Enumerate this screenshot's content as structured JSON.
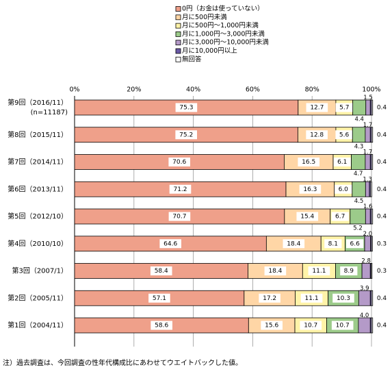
{
  "chart_data": {
    "type": "bar",
    "stacked": true,
    "orientation": "horizontal",
    "percent": true,
    "xlim": [
      0,
      100
    ],
    "x_ticks": [
      "0%",
      "20%",
      "40%",
      "60%",
      "80%",
      "100%"
    ],
    "legend_position": "top",
    "categories": [
      "第9回（2016/11）(n=11187)",
      "第8回（2015/11）",
      "第7回（2014/11）",
      "第6回（2013/11）",
      "第5回（2012/10）",
      "第4回（2010/10）",
      "第3回（2007/1）",
      "第2回（2005/11）",
      "第1回（2004/11）"
    ],
    "category_lines": [
      [
        "第9回（2016/11）",
        "(n=11187)"
      ],
      [
        "第8回（2015/11）"
      ],
      [
        "第7回（2014/11）"
      ],
      [
        "第6回（2013/11）"
      ],
      [
        "第5回（2012/10）"
      ],
      [
        "第4回（2010/10）"
      ],
      [
        "第3回（2007/1）"
      ],
      [
        "第2回（2005/11）"
      ],
      [
        "第1回（2004/11）"
      ]
    ],
    "series": [
      {
        "name": "0円（お金は使っていない）",
        "color": "#EFA08A",
        "values": [
          75.3,
          75.2,
          70.6,
          71.2,
          70.7,
          64.6,
          58.4,
          57.1,
          58.6
        ],
        "labels": [
          "75.3",
          "75.2",
          "70.6",
          "71.2",
          "70.7",
          "64.6",
          "58.4",
          "57.1",
          "58.6"
        ]
      },
      {
        "name": "月に500円未満",
        "color": "#FFD6A6",
        "values": [
          12.7,
          12.8,
          16.5,
          16.3,
          15.4,
          18.4,
          18.4,
          17.2,
          15.6
        ],
        "labels": [
          "12.7",
          "12.8",
          "16.5",
          "16.3",
          "15.4",
          "18.4",
          "18.4",
          "17.2",
          "15.6"
        ]
      },
      {
        "name": "月に500円～1,000円未満",
        "color": "#FFF3A8",
        "values": [
          5.7,
          5.6,
          6.1,
          6.0,
          6.7,
          8.1,
          11.1,
          11.1,
          10.7
        ],
        "labels": [
          "5.7",
          "5.6",
          "6.1",
          "6.0",
          "6.7",
          "8.1",
          "11.1",
          "11.1",
          "10.7"
        ]
      },
      {
        "name": "月に1,000円～3,000円未満",
        "color": "#9CCB8A",
        "values": [
          4.4,
          4.3,
          4.7,
          4.5,
          5.2,
          6.6,
          8.9,
          10.3,
          10.7
        ],
        "labels": [
          "4.4",
          "4.3",
          "4.7",
          "4.5",
          "5.2",
          "6.6",
          "8.9",
          "10.3",
          "10.7"
        ]
      },
      {
        "name": "月に3,000円～10,000円未満",
        "color": "#B49AC8",
        "values": [
          1.5,
          1.7,
          1.7,
          1.3,
          1.6,
          2.0,
          2.8,
          3.9,
          4.0
        ],
        "labels": [
          "1.5",
          "1.7",
          "1.7",
          "1.3",
          "1.6",
          "2.0",
          "2.8",
          "3.9",
          "4.0"
        ]
      },
      {
        "name": "月に10,000円以上",
        "color": "#6A5AA6",
        "values": [
          0.4,
          0.4,
          0.4,
          0.4,
          0.4,
          0.3,
          0.3,
          0.4,
          0.4
        ],
        "labels": [
          "",
          "",
          "",
          "",
          "",
          "",
          "",
          "",
          ""
        ]
      },
      {
        "name": "無回答",
        "color": "#FFFFFF",
        "values": [
          0.4,
          0.4,
          0.4,
          0.4,
          0.4,
          0.3,
          0.3,
          0.4,
          0.4
        ],
        "labels": [
          "0.4",
          "0.4",
          "0.4",
          "0.4",
          "0.4",
          "0.3",
          "0.3",
          "0.4",
          "0.4"
        ]
      }
    ]
  },
  "note": "注）過去調査は、今回調査の性年代構成比にあわせてウエイトバックした値。"
}
